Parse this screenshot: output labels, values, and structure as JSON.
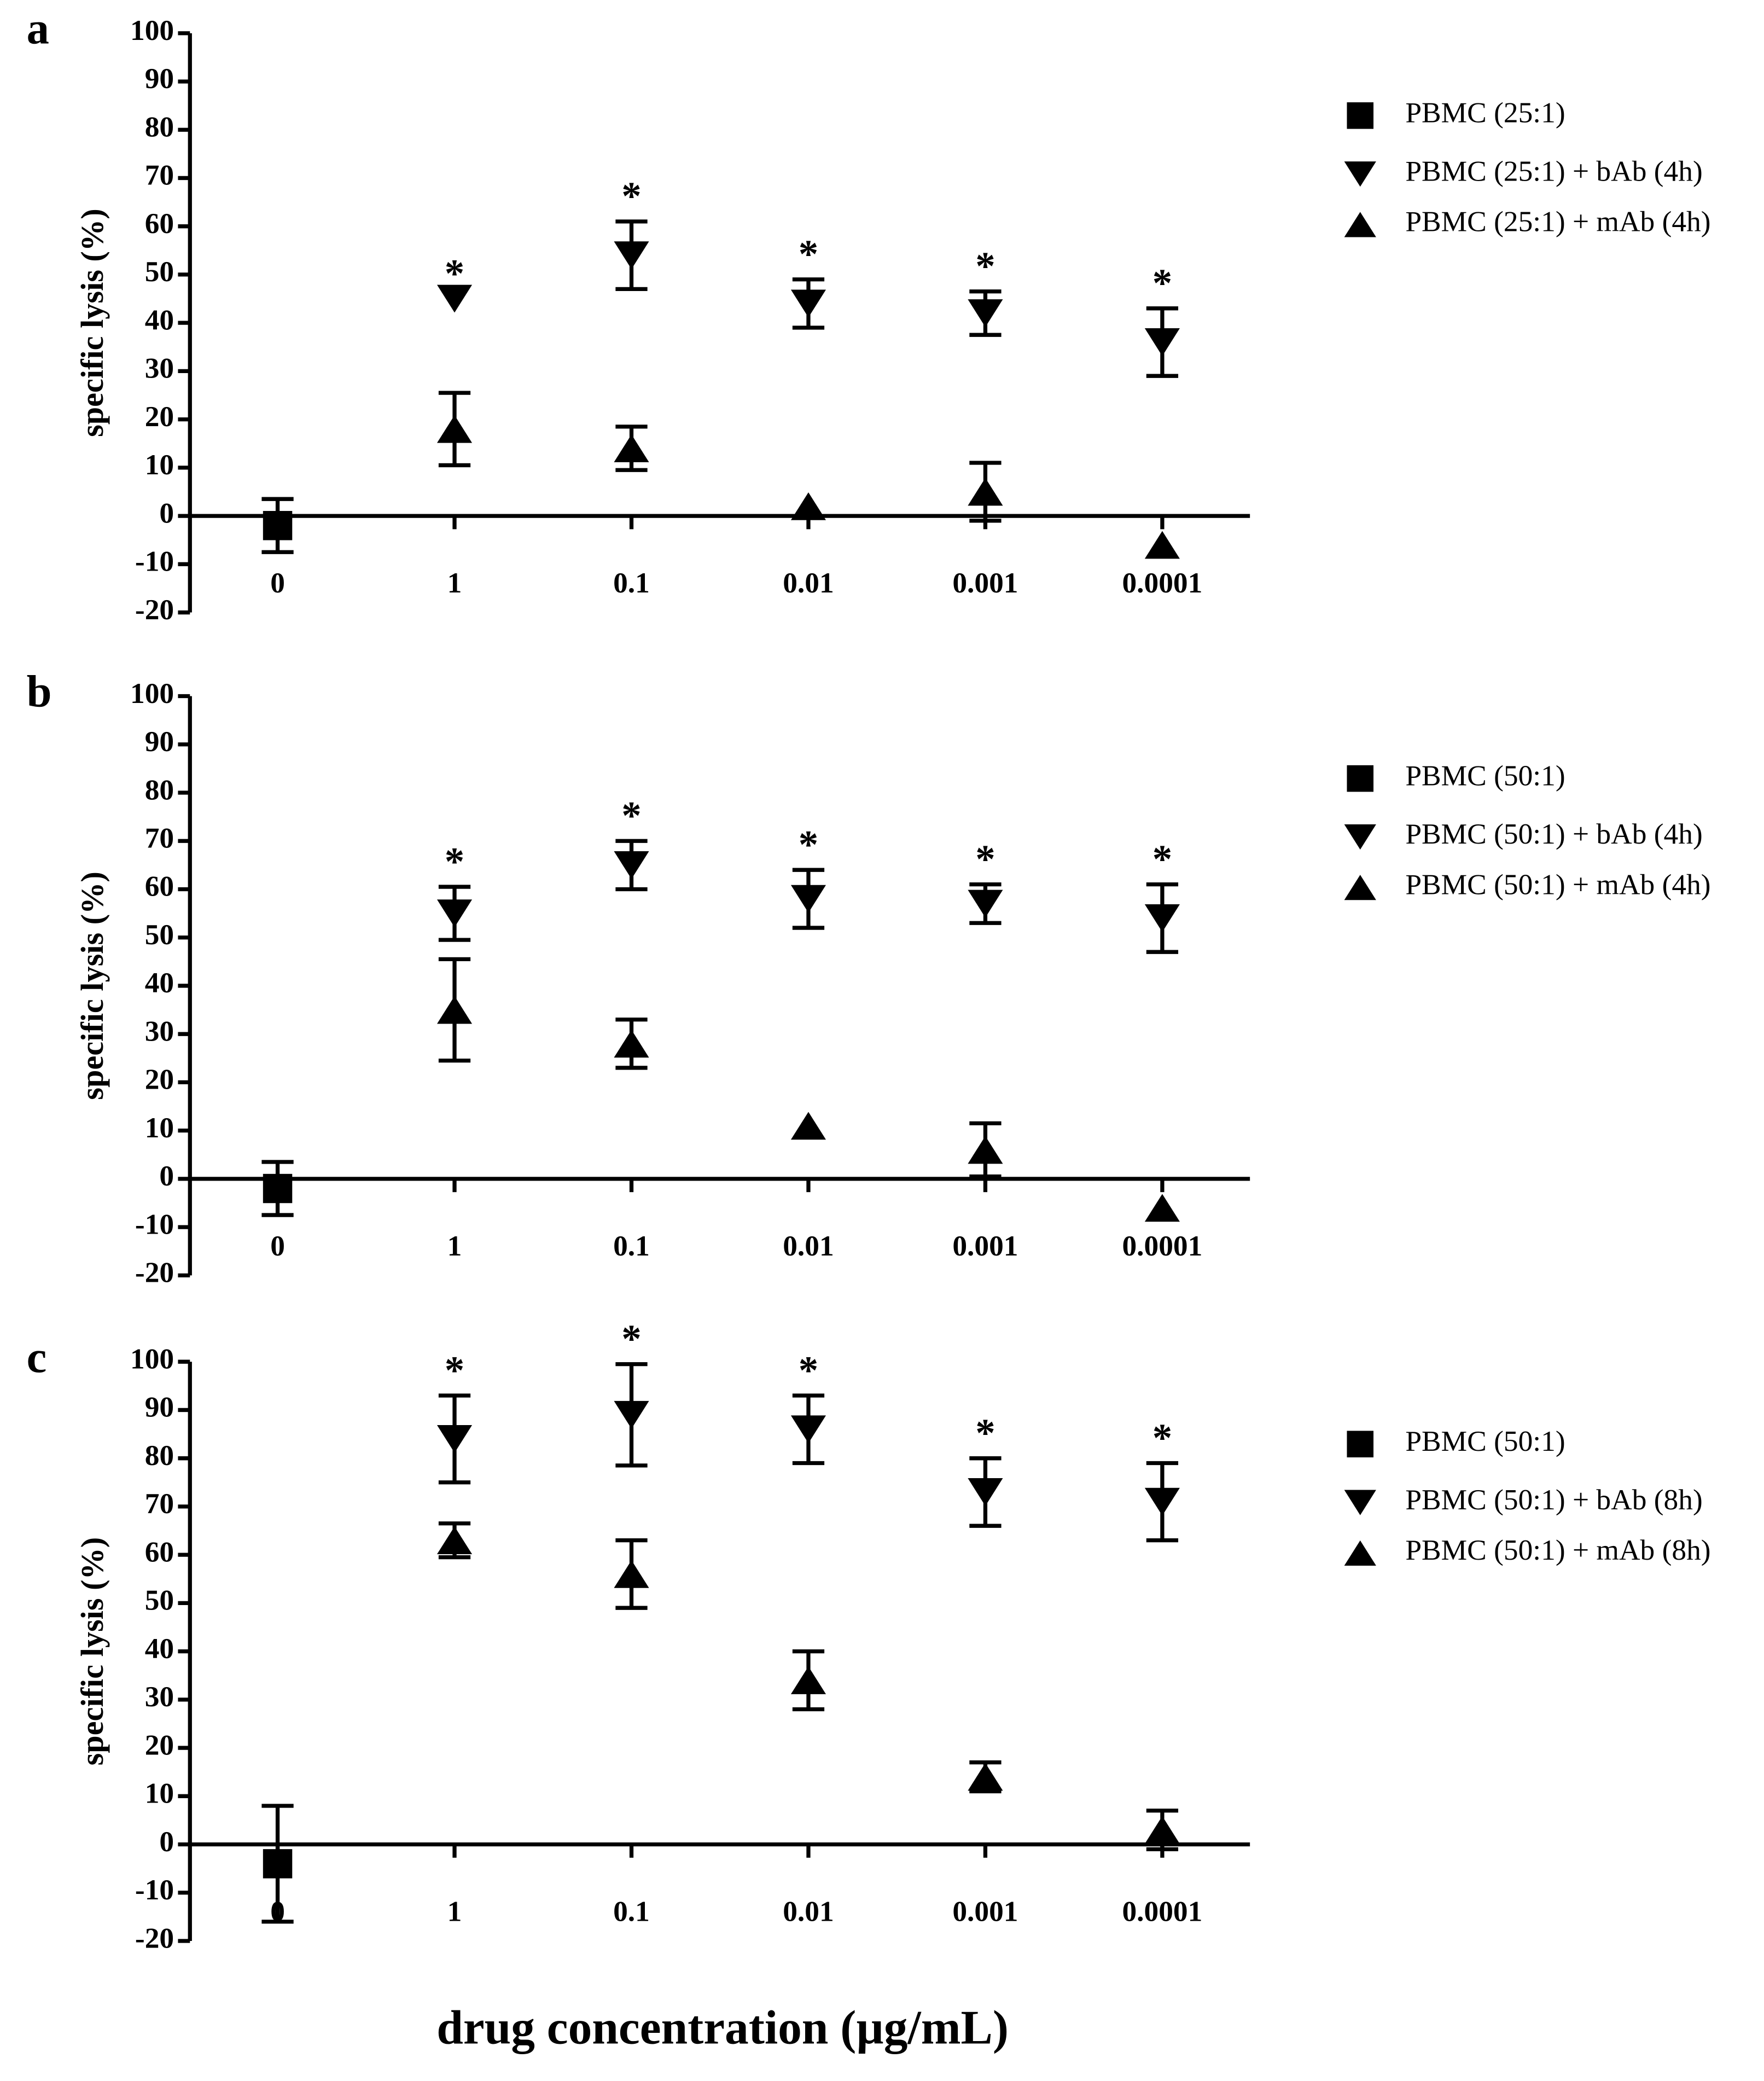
{
  "xlabel": "drug concentration (µg/mL)",
  "chart_data": [
    {
      "type": "scatter",
      "panel": "a",
      "ylabel": "specific lysis (%)",
      "categories": [
        "0",
        "1",
        "0.1",
        "0.01",
        "0.001",
        "0.0001"
      ],
      "ylim": [
        -20,
        100
      ],
      "yticks": [
        -20,
        -10,
        0,
        10,
        20,
        30,
        40,
        50,
        60,
        70,
        80,
        90,
        100
      ],
      "significance": [
        null,
        "*",
        "*",
        "*",
        "*",
        "*"
      ],
      "series": [
        {
          "name": "PBMC (25:1)",
          "color": "#000000",
          "marker": "square",
          "values": [
            -2,
            null,
            null,
            null,
            null,
            null
          ],
          "errors": [
            5.5,
            null,
            null,
            null,
            null,
            null
          ]
        },
        {
          "name": "PBMC (25:1) + bAb (4h)",
          "color": "#000000",
          "marker": "triangle-down",
          "values": [
            null,
            45,
            54,
            44,
            42,
            36
          ],
          "errors": [
            null,
            null,
            7,
            5,
            4.5,
            7
          ]
        },
        {
          "name": "PBMC (25:1) + mAb (4h)",
          "color": "#000000",
          "marker": "triangle-up",
          "values": [
            null,
            18,
            14,
            2,
            5,
            -6
          ],
          "errors": [
            null,
            7.5,
            4.5,
            null,
            6,
            null
          ]
        }
      ]
    },
    {
      "type": "scatter",
      "panel": "b",
      "ylabel": "specific lysis (%)",
      "categories": [
        "0",
        "1",
        "0.1",
        "0.01",
        "0.001",
        "0.0001"
      ],
      "ylim": [
        -20,
        100
      ],
      "yticks": [
        -20,
        -10,
        0,
        10,
        20,
        30,
        40,
        50,
        60,
        70,
        80,
        90,
        100
      ],
      "significance": [
        null,
        "*",
        "*",
        "*",
        "*",
        "*"
      ],
      "series": [
        {
          "name": "PBMC (50:1)",
          "color": "#000000",
          "marker": "square",
          "values": [
            -2,
            null,
            null,
            null,
            null,
            null
          ],
          "errors": [
            5.5,
            null,
            null,
            null,
            null,
            null
          ]
        },
        {
          "name": "PBMC (50:1) + bAb (4h)",
          "color": "#000000",
          "marker": "triangle-down",
          "values": [
            null,
            55,
            65,
            58,
            57,
            54
          ],
          "errors": [
            null,
            5.5,
            5,
            6,
            4,
            7
          ]
        },
        {
          "name": "PBMC (50:1) + mAb (4h)",
          "color": "#000000",
          "marker": "triangle-up",
          "values": [
            null,
            35,
            28,
            11,
            6,
            -6
          ],
          "errors": [
            null,
            10.5,
            5,
            null,
            5.5,
            null
          ]
        }
      ]
    },
    {
      "type": "scatter",
      "panel": "c",
      "ylabel": "specific lysis (%)",
      "categories": [
        "0",
        "1",
        "0.1",
        "0.01",
        "0.001",
        "0.0001"
      ],
      "ylim": [
        -20,
        100
      ],
      "yticks": [
        -20,
        -10,
        0,
        10,
        20,
        30,
        40,
        50,
        60,
        70,
        80,
        90,
        100
      ],
      "significance": [
        null,
        "*",
        "*",
        "*",
        "*",
        "*"
      ],
      "series": [
        {
          "name": "PBMC (50:1)",
          "color": "#000000",
          "marker": "square",
          "values": [
            -4,
            null,
            null,
            null,
            null,
            null
          ],
          "errors": [
            12,
            null,
            null,
            null,
            null,
            null
          ]
        },
        {
          "name": "PBMC (50:1) + bAb (8h)",
          "color": "#000000",
          "marker": "triangle-down",
          "values": [
            null,
            84,
            89,
            86,
            73,
            71
          ],
          "errors": [
            null,
            9,
            10.5,
            7,
            7,
            8
          ]
        },
        {
          "name": "PBMC (50:1) + mAb (8h)",
          "color": "#000000",
          "marker": "triangle-up",
          "values": [
            null,
            63,
            56,
            34,
            14,
            3
          ],
          "errors": [
            null,
            3.5,
            7,
            6,
            3,
            4
          ]
        }
      ]
    }
  ]
}
